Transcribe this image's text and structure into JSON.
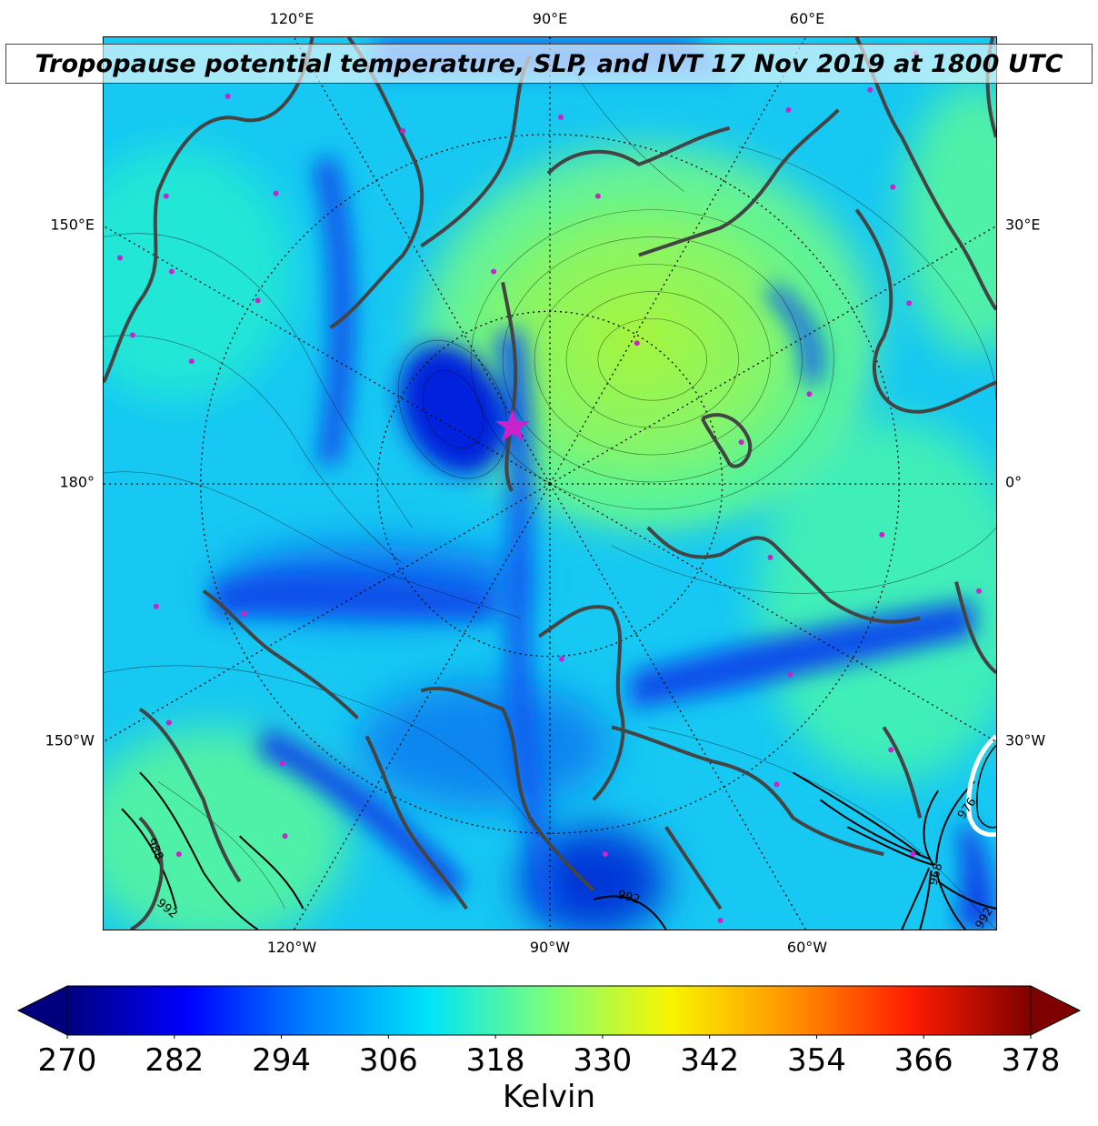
{
  "title": "Tropopause potential temperature, SLP, and IVT 17 Nov 2019 at 1800 UTC",
  "lon_labels": {
    "top": [
      "120°E",
      "90°E",
      "60°E"
    ],
    "bottom": [
      "120°W",
      "90°W",
      "60°W"
    ],
    "left": [
      "150°E",
      "180°",
      "150°W"
    ],
    "right": [
      "30°E",
      "0°",
      "30°W"
    ]
  },
  "slp_contour_labels": [
    "988",
    "992",
    "992",
    "992",
    "976",
    "968"
  ],
  "colorbar": {
    "label": "Kelvin",
    "min": 270,
    "max": 378,
    "ticks": [
      "270",
      "282",
      "294",
      "306",
      "318",
      "330",
      "342",
      "354",
      "366",
      "378"
    ],
    "extend": "both",
    "colormap": "jet"
  },
  "colors": {
    "coast": "#444444",
    "marker": "#cc22cc",
    "frame": "#000000"
  }
}
